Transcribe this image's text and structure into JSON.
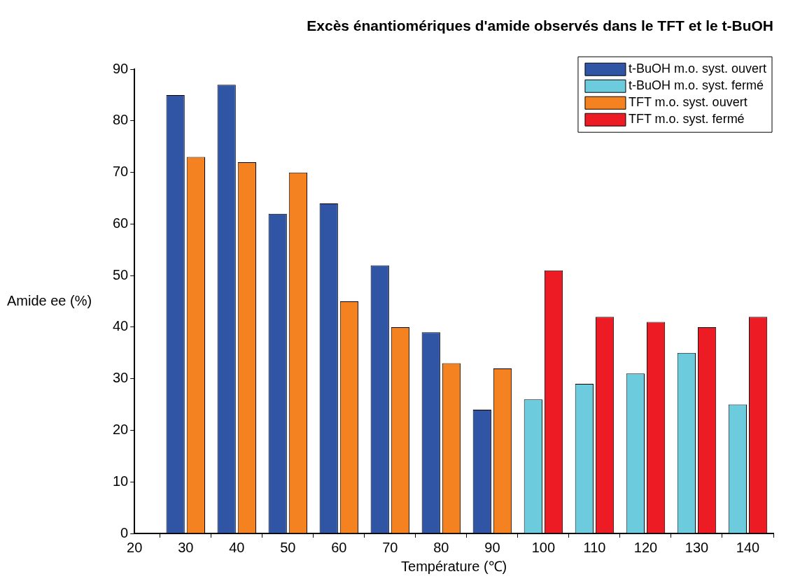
{
  "chart_data": {
    "type": "bar",
    "title": "Excès énantiomériques d'amide observés dans le TFT et le t-BuOH",
    "xlabel": "Température (℃)",
    "ylabel": "Amide ee (%)",
    "x": [
      30,
      40,
      50,
      60,
      70,
      80,
      90,
      100,
      110,
      120,
      130,
      140
    ],
    "series": [
      {
        "name": "t-BuOH m.o. syst. ouvert",
        "color": "#2f55a4",
        "values": [
          85,
          87,
          62,
          64,
          52,
          39,
          24,
          null,
          null,
          null,
          null,
          null
        ]
      },
      {
        "name": "t-BuOH m.o. syst. fermé",
        "color": "#6ccbdc",
        "values": [
          null,
          null,
          null,
          null,
          null,
          null,
          null,
          26,
          29,
          31,
          35,
          25
        ]
      },
      {
        "name": "TFT m.o. syst. ouvert",
        "color": "#f58220",
        "values": [
          73,
          72,
          70,
          45,
          40,
          33,
          32,
          null,
          null,
          null,
          null,
          null
        ]
      },
      {
        "name": "TFT m.o. syst. fermé",
        "color": "#ed1c24",
        "values": [
          null,
          null,
          null,
          null,
          null,
          null,
          null,
          51,
          42,
          41,
          40,
          42
        ]
      }
    ],
    "xlim": [
      20,
      145
    ],
    "xticks": [
      20,
      30,
      40,
      50,
      60,
      70,
      80,
      90,
      100,
      110,
      120,
      130,
      140
    ],
    "ylim": [
      0,
      90
    ],
    "yticks": [
      0,
      10,
      20,
      30,
      40,
      50,
      60,
      70,
      80,
      90
    ],
    "grid": false,
    "legend": "top right"
  }
}
